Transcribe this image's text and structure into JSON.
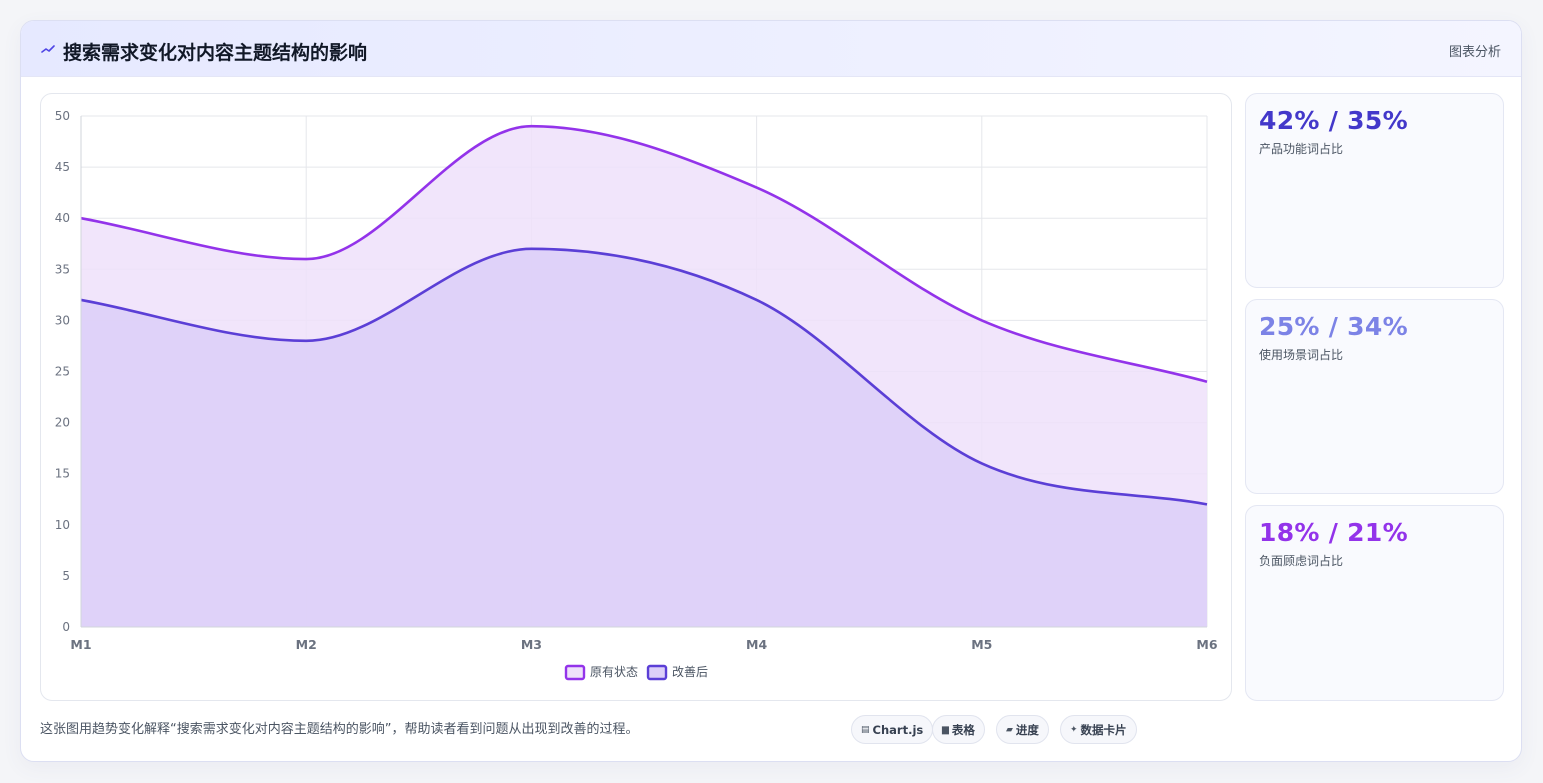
{
  "header": {
    "icon": "sparkline-icon",
    "title": "搜索需求变化对内容主题结构的影响",
    "tag": "图表分析"
  },
  "chart_data": {
    "type": "area",
    "categories": [
      "M1",
      "M2",
      "M3",
      "M4",
      "M5",
      "M6"
    ],
    "series": [
      {
        "name": "原有状态",
        "values": [
          40,
          36,
          49,
          43,
          30,
          24
        ],
        "color": "#9333ea",
        "fill": "#eee1fa"
      },
      {
        "name": "改善后",
        "values": [
          32,
          28,
          37,
          32,
          16,
          12
        ],
        "color": "#5b3fd6",
        "fill": "#dccff8"
      }
    ],
    "ylim": [
      0,
      50
    ],
    "yticks": [
      0,
      5,
      10,
      15,
      20,
      25,
      30,
      35,
      40,
      45,
      50
    ],
    "grid": true,
    "legend_position": "bottom",
    "smooth": true
  },
  "stats": [
    {
      "value": "42% / 35%",
      "label": "产品功能词占比",
      "color": "#4338ca"
    },
    {
      "value": "25% / 34%",
      "label": "使用场景词占比",
      "color": "#7c83e6"
    },
    {
      "value": "18% / 21%",
      "label": "负面顾虑词占比",
      "color": "#9333ea"
    }
  ],
  "footer": {
    "description": "这张图用趋势变化解释“搜索需求变化对内容主题结构的影响”，帮助读者看到问题从出现到改善的过程。",
    "chips": [
      {
        "icon": "▤",
        "label": "Chart.js"
      },
      {
        "icon": "▆",
        "label": "表格"
      },
      {
        "icon": "▰",
        "label": "进度"
      },
      {
        "icon": "✦",
        "label": "数据卡片"
      }
    ]
  }
}
